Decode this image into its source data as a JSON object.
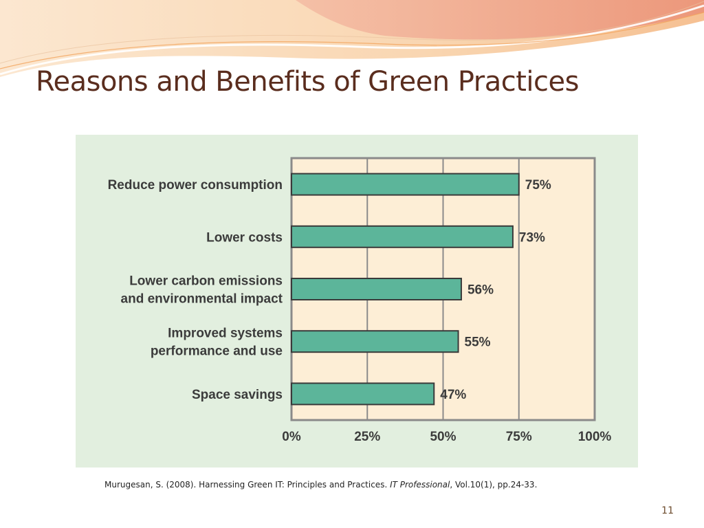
{
  "slide": {
    "title": "Reasons and Benefits of Green Practices",
    "citation_pre": "Murugesan, S. (2008). Harnessing Green IT: Principles and Practices. ",
    "citation_journal": "IT Professional",
    "citation_post": ", Vol.10(1), pp.24-33.",
    "page_number": "11"
  },
  "colors": {
    "panel_bg": "#e2efdf",
    "plot_bg": "#fdeed6",
    "bar_fill": "#5cb59a",
    "bar_stroke": "#3a3a3a",
    "axis": "#8a8a8a",
    "title_color": "#5a2d1e"
  },
  "chart_data": {
    "type": "bar",
    "orientation": "horizontal",
    "categories": [
      [
        "Reduce power consumption"
      ],
      [
        "Lower costs"
      ],
      [
        "Lower carbon emissions",
        "and environmental impact"
      ],
      [
        "Improved systems",
        "performance and use"
      ],
      [
        "Space savings"
      ]
    ],
    "values": [
      75,
      73,
      56,
      55,
      47
    ],
    "value_labels": [
      "75%",
      "73%",
      "56%",
      "55%",
      "47%"
    ],
    "xlim": [
      0,
      100
    ],
    "ticks": [
      0,
      25,
      50,
      75,
      100
    ],
    "tick_labels": [
      "0%",
      "25%",
      "50%",
      "75%",
      "100%"
    ],
    "grid": true
  }
}
